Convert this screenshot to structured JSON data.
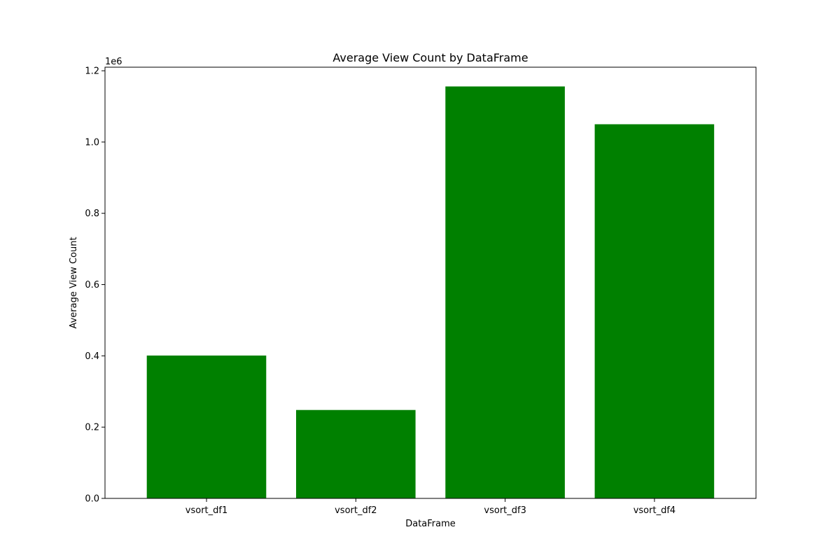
{
  "chart_data": {
    "type": "bar",
    "title": "Average View Count by DataFrame",
    "xlabel": "DataFrame",
    "ylabel": "Average View Count",
    "categories": [
      "vsort_df1",
      "vsort_df2",
      "vsort_df3",
      "vsort_df4"
    ],
    "values": [
      401000,
      248000,
      1156000,
      1050000
    ],
    "ylim": [
      0,
      1210000
    ],
    "y_offset_label": "1e6",
    "y_ticks": [
      0,
      200000,
      400000,
      600000,
      800000,
      1000000,
      1200000
    ],
    "y_tick_labels": [
      "0.0",
      "0.2",
      "0.4",
      "0.6",
      "0.8",
      "1.0",
      "1.2"
    ],
    "bar_color": "#008000",
    "grid": false,
    "legend": "none"
  }
}
